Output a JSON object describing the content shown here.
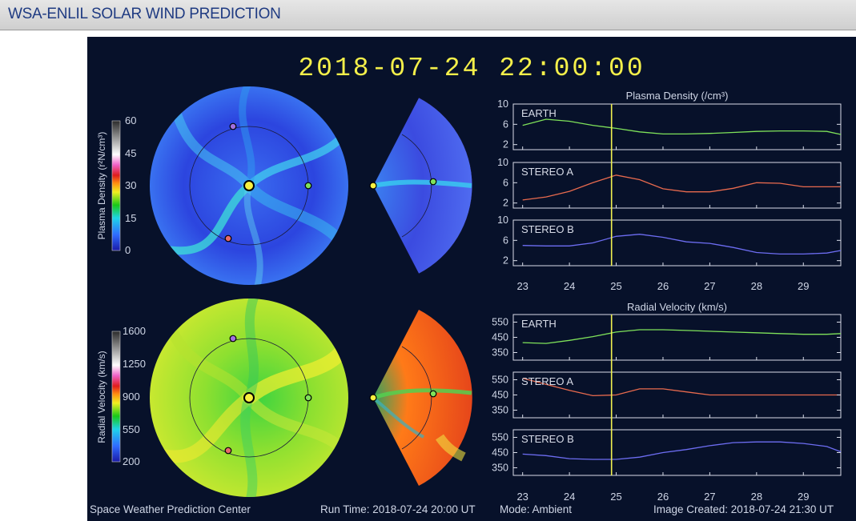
{
  "header": {
    "title": "WSA-ENLIL SOLAR WIND PREDICTION"
  },
  "timestamp": "2018-07-24  22:00:00",
  "colorbars": {
    "density": {
      "label": "Plasma Density (r²N/cm³)",
      "ticks": [
        "60",
        "45",
        "30",
        "15",
        "0"
      ]
    },
    "velocity": {
      "label": "Radial Velocity (km/s)",
      "ticks": [
        "1600",
        "1250",
        "900",
        "550",
        "200"
      ]
    }
  },
  "footer": {
    "center": "Space Weather Prediction Center",
    "run_time": "Run Time: 2018-07-24 20:00 UT",
    "mode": "Mode: Ambient",
    "created": "Image Created: 2018-07-24 21:30 UT"
  },
  "colors": {
    "earth": "#7fe25a",
    "stereo_a": "#e86a4e",
    "stereo_b": "#6d6df2",
    "marker_line": "#f0f050",
    "panel_bg": "#07112a"
  },
  "chart_data": [
    {
      "type": "line",
      "title": "Plasma Density (/cm³)",
      "x": [
        23,
        23.5,
        24,
        24.5,
        25,
        25.5,
        26,
        26.5,
        27,
        27.5,
        28,
        28.5,
        29,
        29.5,
        29.8
      ],
      "xticks": [
        "23",
        "24",
        "25",
        "26",
        "27",
        "28",
        "29"
      ],
      "xlim": [
        22.8,
        29.8
      ],
      "marker_x": 24.9,
      "panels": [
        {
          "name": "EARTH",
          "color": "#7fe25a",
          "ylim": [
            1,
            10
          ],
          "yticks": [
            "10",
            "6",
            "2"
          ],
          "values": [
            5.8,
            7.0,
            6.6,
            5.8,
            5.2,
            4.5,
            4.1,
            4.1,
            4.2,
            4.4,
            4.6,
            4.7,
            4.7,
            4.6,
            4.0
          ]
        },
        {
          "name": "STEREO A",
          "color": "#e86a4e",
          "ylim": [
            1,
            10
          ],
          "yticks": [
            "10",
            "6",
            "2"
          ],
          "values": [
            2.6,
            3.2,
            4.3,
            6.0,
            7.5,
            6.6,
            4.8,
            4.2,
            4.2,
            4.9,
            6.0,
            5.9,
            5.2,
            5.2,
            5.2
          ]
        },
        {
          "name": "STEREO B",
          "color": "#6d6df2",
          "ylim": [
            1,
            10
          ],
          "yticks": [
            "10",
            "6",
            "2"
          ],
          "values": [
            5.0,
            4.9,
            4.9,
            5.5,
            6.8,
            7.2,
            6.6,
            5.7,
            5.4,
            4.6,
            3.6,
            3.3,
            3.3,
            3.5,
            4.0
          ]
        }
      ]
    },
    {
      "type": "line",
      "title": "Radial Velocity (km/s)",
      "x": [
        23,
        23.5,
        24,
        24.5,
        25,
        25.5,
        26,
        26.5,
        27,
        27.5,
        28,
        28.5,
        29,
        29.5,
        29.8
      ],
      "xticks": [
        "23",
        "24",
        "25",
        "26",
        "27",
        "28",
        "29"
      ],
      "xlim": [
        22.8,
        29.8
      ],
      "marker_x": 24.9,
      "panels": [
        {
          "name": "EARTH",
          "color": "#7fe25a",
          "ylim": [
            300,
            600
          ],
          "yticks": [
            "550",
            "450",
            "350"
          ],
          "values": [
            415,
            410,
            430,
            455,
            485,
            500,
            500,
            495,
            490,
            485,
            480,
            475,
            470,
            470,
            475
          ]
        },
        {
          "name": "STEREO A",
          "color": "#e86a4e",
          "ylim": [
            300,
            600
          ],
          "yticks": [
            "550",
            "450",
            "350"
          ],
          "values": [
            560,
            520,
            480,
            445,
            450,
            490,
            490,
            470,
            450,
            450,
            450,
            450,
            450,
            450,
            450
          ]
        },
        {
          "name": "STEREO B",
          "color": "#6d6df2",
          "ylim": [
            300,
            600
          ],
          "yticks": [
            "550",
            "450",
            "350"
          ],
          "values": [
            440,
            430,
            410,
            405,
            405,
            420,
            450,
            470,
            495,
            515,
            520,
            520,
            510,
            490,
            455
          ]
        }
      ]
    }
  ]
}
